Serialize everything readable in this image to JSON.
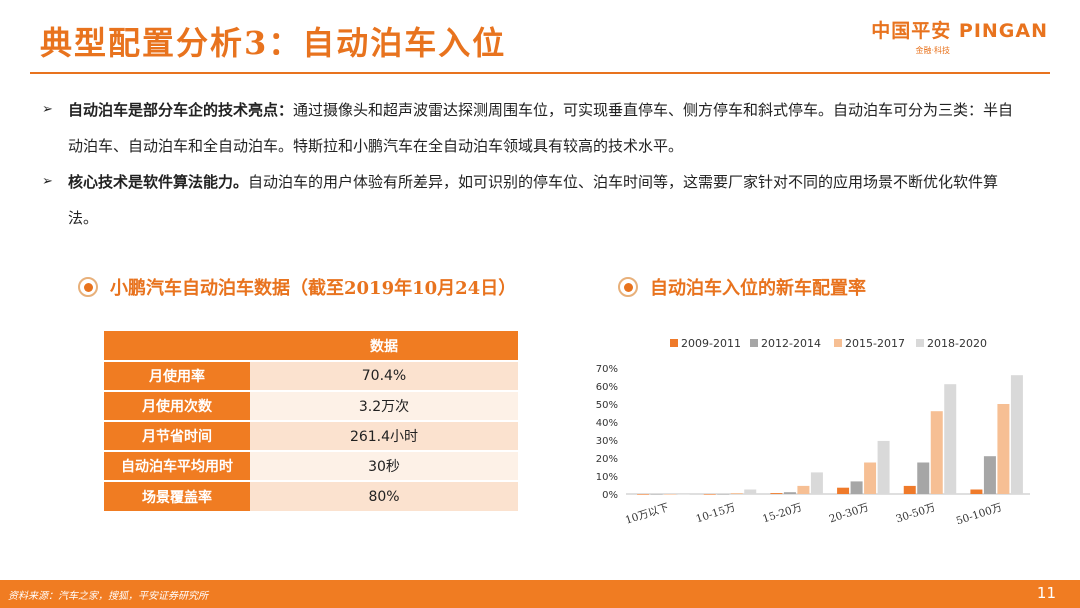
{
  "header": {
    "title": "典型配置分析3：自动泊车入位",
    "logo_main": "中国平安 PINGAN",
    "logo_sub": "金融·科技"
  },
  "bullets": [
    {
      "bold": "自动泊车是部分车企的技术亮点：",
      "text": "通过摄像头和超声波雷达探测周围车位，可实现垂直停车、侧方停车和斜式停车。自动泊车可分为三类：半自动泊车、自动泊车和全自动泊车。特斯拉和小鹏汽车在全自动泊车领域具有较高的技术水平。"
    },
    {
      "bold": "核心技术是软件算法能力。",
      "text": "自动泊车的用户体验有所差异，如可识别的停车位、泊车时间等，这需要厂家针对不同的应用场景不断优化软件算法。"
    }
  ],
  "left_section": {
    "title": "小鹏汽车自动泊车数据（截至2019年10月24日）",
    "table": {
      "header": [
        "",
        "数据"
      ],
      "rows": [
        [
          "月使用率",
          "70.4%"
        ],
        [
          "月使用次数",
          "3.2万次"
        ],
        [
          "月节省时间",
          "261.4小时"
        ],
        [
          "自动泊车平均用时",
          "30秒"
        ],
        [
          "场景覆盖率",
          "80%"
        ]
      ]
    }
  },
  "right_section": {
    "title": "自动泊车入位的新车配置率"
  },
  "chart_data": {
    "type": "bar",
    "categories": [
      "10万以下",
      "10-15万",
      "15-20万",
      "20-30万",
      "30-50万",
      "50-100万"
    ],
    "series": [
      {
        "name": "2009-2011",
        "color": "#ef7a2a",
        "values": [
          0,
          0,
          0.5,
          3.5,
          4.5,
          2.5
        ]
      },
      {
        "name": "2012-2014",
        "color": "#a6a6a6",
        "values": [
          0,
          0,
          1,
          7,
          17.5,
          21
        ]
      },
      {
        "name": "2015-2017",
        "color": "#f6bf94",
        "values": [
          0,
          0.5,
          4.5,
          17.5,
          46,
          50
        ]
      },
      {
        "name": "2018-2020",
        "color": "#d9d9d9",
        "values": [
          0,
          2.5,
          12,
          29.5,
          61,
          66
        ]
      }
    ],
    "yticks": [
      "0%",
      "10%",
      "20%",
      "30%",
      "40%",
      "50%",
      "60%",
      "70%"
    ],
    "ylim": [
      0,
      70
    ],
    "legend": "top",
    "grid": false
  },
  "footer": {
    "source": "资料来源：汽车之家，搜狐，平安证券研究所",
    "page": "11"
  }
}
